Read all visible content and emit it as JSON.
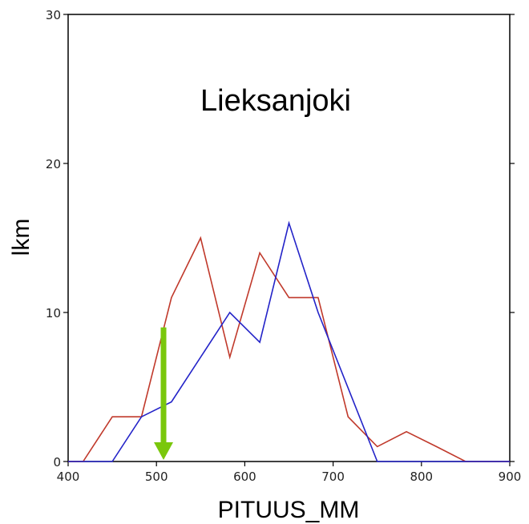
{
  "chart_data": {
    "type": "line",
    "xlabel": "PITUUS_MM",
    "ylabel": "lkm",
    "annotation": "Lieksanjoki",
    "xlim": [
      400,
      900
    ],
    "ylim": [
      0,
      30
    ],
    "x_ticks": [
      "400",
      "500",
      "600",
      "700",
      "800",
      "900"
    ],
    "y_ticks": [
      "0",
      "10",
      "20",
      "30"
    ],
    "grid": false,
    "series": [
      {
        "color": "#c0392b",
        "points": [
          [
            400,
            0
          ],
          [
            417,
            0
          ],
          [
            450,
            3
          ],
          [
            483,
            3
          ],
          [
            500,
            7
          ],
          [
            517,
            11
          ],
          [
            550,
            15
          ],
          [
            583,
            7
          ],
          [
            617,
            14
          ],
          [
            650,
            11
          ],
          [
            683,
            11
          ],
          [
            717,
            3
          ],
          [
            750,
            1
          ],
          [
            783,
            2
          ],
          [
            817,
            1
          ],
          [
            850,
            0
          ],
          [
            900,
            0
          ]
        ]
      },
      {
        "color": "#2323c8",
        "points": [
          [
            400,
            0
          ],
          [
            450,
            0
          ],
          [
            483,
            3
          ],
          [
            517,
            4
          ],
          [
            583,
            10
          ],
          [
            617,
            8
          ],
          [
            650,
            16
          ],
          [
            683,
            10
          ],
          [
            750,
            0
          ],
          [
            900,
            0
          ]
        ]
      }
    ],
    "marker_arrow": {
      "x": 508,
      "y_from": 9,
      "y_to": 0,
      "color": "#7ac70c"
    }
  }
}
